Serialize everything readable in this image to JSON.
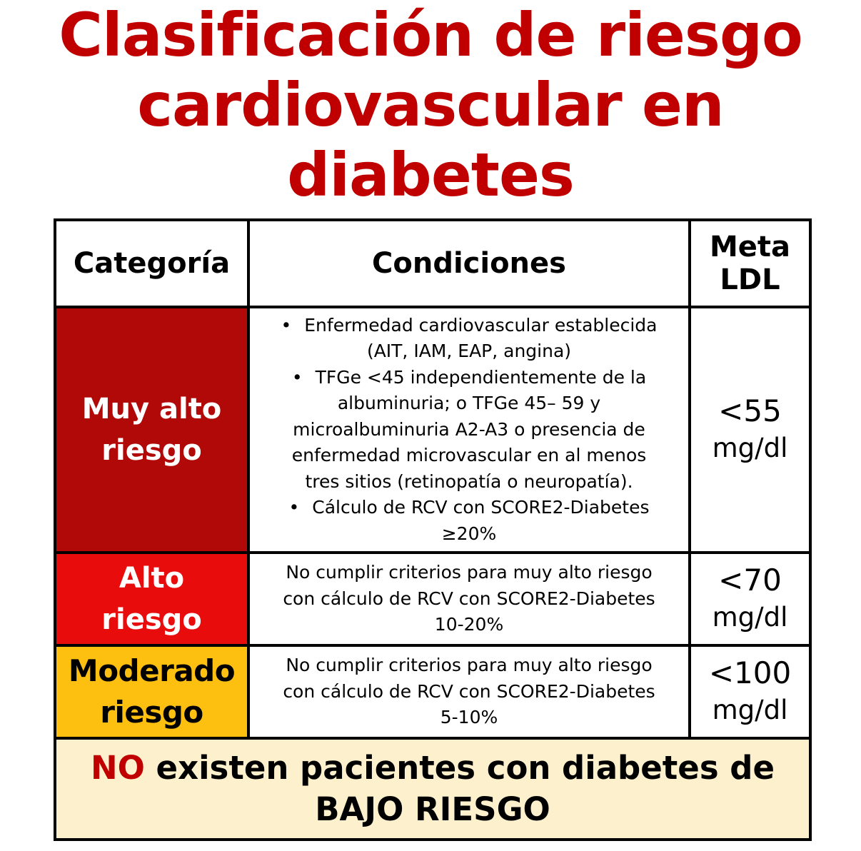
{
  "title": {
    "lines": [
      "Clasificación de riesgo",
      "cardiovascular en",
      "diabetes"
    ],
    "color": "#c00000"
  },
  "table": {
    "headers": {
      "category": "Categoría",
      "conditions": "Condiciones",
      "goal_line1": "Meta",
      "goal_line2": "LDL"
    },
    "rows": [
      {
        "category_line1": "Muy alto",
        "category_line2": "riesgo",
        "bg_color": "#b10808",
        "text_color": "#ffffff",
        "bullets": [
          {
            "line1": "Enfermedad cardiovascular establecida",
            "line2": "(AIT, IAM, EAP, angina)"
          },
          {
            "line1": "TFGe <45 independientemente de la",
            "line2": "albuminuria; o TFGe 45– 59 y",
            "line3": "microalbuminuria A2-A3 o presencia de",
            "line4": "enfermedad microvascular en al menos",
            "line5": "tres sitios (retinopatía o neuropatía)."
          },
          {
            "line1": "Cálculo de RCV con SCORE2-Diabetes",
            "line2": "≥20%"
          }
        ],
        "goal_value": "<55",
        "goal_unit": "mg/dl"
      },
      {
        "category_line1": "Alto",
        "category_line2": "riesgo",
        "bg_color": "#e80c0c",
        "text_color": "#ffffff",
        "condition_line1": "No cumplir criterios para muy alto riesgo",
        "condition_line2": "con cálculo de RCV con SCORE2-Diabetes",
        "condition_line3": "10-20%",
        "goal_value": "<70",
        "goal_unit": "mg/dl"
      },
      {
        "category_line1": "Moderado",
        "category_line2": "riesgo",
        "bg_color": "#fdbf10",
        "text_color": "#000000",
        "condition_line1": "No cumplir criterios para muy alto riesgo",
        "condition_line2": "con cálculo de RCV con SCORE2-Diabetes",
        "condition_line3": "5-10%",
        "goal_value": "<100",
        "goal_unit": "mg/dl"
      }
    ],
    "footer": {
      "no_word": "NO",
      "rest_line1": " existen pacientes con diabetes de",
      "line2": "BAJO RIESGO",
      "bg_color": "#fdf0cc"
    }
  }
}
